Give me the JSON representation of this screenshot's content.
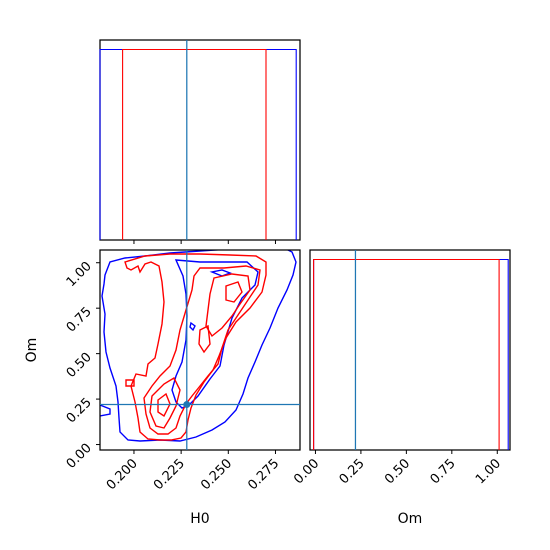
{
  "chart_data": [
    {
      "type": "histogram",
      "panel": "H0 marginal",
      "xlim": [
        0.182,
        0.288
      ],
      "truth": 0.228,
      "series": [
        {
          "color": "#0000ff",
          "bin_edges": [
            0.182,
            0.186,
            0.19,
            0.194,
            0.198,
            0.202,
            0.206,
            0.21,
            0.214,
            0.218,
            0.222,
            0.226,
            0.23,
            0.234,
            0.238,
            0.242,
            0.246,
            0.25,
            0.254,
            0.258,
            0.262,
            0.266,
            0.27,
            0.274,
            0.278,
            0.282,
            0.286
          ],
          "counts": [
            0.03,
            0.03,
            0.03,
            0.03,
            0.03,
            0.03,
            0.03,
            0.03,
            0.03,
            0.03,
            0.03,
            0.03,
            0.03,
            0.03,
            0.03,
            0.03,
            0.03,
            0.03,
            0.03,
            0.03,
            0.03,
            0.03,
            0.03,
            0.03,
            0.03,
            0.03
          ]
        },
        {
          "color": "#ff0000",
          "bin_edges": [
            0.194,
            0.198,
            0.202,
            0.206,
            0.21,
            0.214,
            0.218,
            0.222,
            0.226,
            0.23,
            0.234,
            0.238,
            0.242,
            0.246,
            0.25,
            0.254,
            0.258,
            0.262,
            0.266,
            0.27
          ],
          "counts": [
            0.03,
            0.03,
            0.03,
            0.03,
            0.03,
            0.03,
            0.03,
            0.03,
            0.03,
            0.03,
            0.03,
            0.03,
            0.03,
            0.03,
            0.03,
            0.03,
            0.03,
            0.03,
            0.03
          ]
        }
      ]
    },
    {
      "type": "contour",
      "panel": "H0 vs Om joint",
      "xlabel": "H0",
      "ylabel": "Om",
      "xlim": [
        0.182,
        0.288
      ],
      "ylim": [
        -0.03,
        1.07
      ],
      "xticks": [
        "0.200",
        "0.225",
        "0.250",
        "0.275"
      ],
      "yticks": [
        "0.00",
        "0.25",
        "0.50",
        "0.75",
        "1.00"
      ],
      "truth": [
        0.228,
        0.22
      ],
      "series": [
        {
          "color": "#0000ff",
          "levels": 2
        },
        {
          "color": "#ff0000",
          "levels": 4
        }
      ]
    },
    {
      "type": "histogram",
      "panel": "Om marginal",
      "xlabel": "Om",
      "xlim": [
        -0.03,
        1.07
      ],
      "xticks": [
        "0.00",
        "0.25",
        "0.50",
        "0.75",
        "1.00"
      ],
      "truth": 0.22,
      "series": [
        {
          "color": "#0000ff",
          "bin_edges": [
            -0.01,
            0.04,
            0.09,
            0.14,
            0.19,
            0.24,
            0.29,
            0.34,
            0.39,
            0.44,
            0.49,
            0.54,
            0.59,
            0.64,
            0.69,
            0.74,
            0.79,
            0.84,
            0.89,
            0.94,
            0.99,
            1.04,
            1.06
          ],
          "counts": [
            0.03,
            0.03,
            0.03,
            0.03,
            0.03,
            0.03,
            0.03,
            0.03,
            0.03,
            0.03,
            0.03,
            0.03,
            0.03,
            0.03,
            0.03,
            0.03,
            0.03,
            0.03,
            0.03,
            0.03,
            0.03,
            0.03
          ]
        },
        {
          "color": "#ff0000",
          "bin_edges": [
            -0.01,
            0.04,
            0.09,
            0.14,
            0.19,
            0.24,
            0.29,
            0.34,
            0.39,
            0.44,
            0.49,
            0.54,
            0.59,
            0.64,
            0.69,
            0.74,
            0.79,
            0.84,
            0.89,
            0.94,
            0.99,
            1.01
          ],
          "counts": [
            0.03,
            0.03,
            0.03,
            0.03,
            0.03,
            0.03,
            0.03,
            0.03,
            0.03,
            0.03,
            0.03,
            0.03,
            0.03,
            0.03,
            0.03,
            0.03,
            0.03,
            0.03,
            0.03,
            0.03,
            0.03
          ]
        }
      ]
    }
  ],
  "colors": {
    "truth": "#1f77b4",
    "series_a": "#0000ff",
    "series_b": "#ff0000",
    "frame": "#000000"
  }
}
